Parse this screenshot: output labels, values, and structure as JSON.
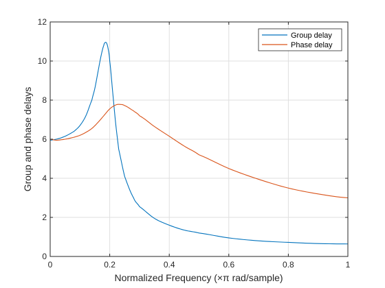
{
  "chart_data": {
    "type": "line",
    "xlabel": "Normalized  Frequency  (×π  rad/sample)",
    "ylabel": "Group and phase delays",
    "xlim": [
      0,
      1
    ],
    "ylim": [
      0,
      12
    ],
    "xticks": [
      "0",
      "0.2",
      "0.4",
      "0.6",
      "0.8",
      "1"
    ],
    "yticks": [
      "0",
      "2",
      "4",
      "6",
      "8",
      "10",
      "12"
    ],
    "grid": true,
    "legend_position": "top-right",
    "series": [
      {
        "name": "Group delay",
        "color": "#0072BD",
        "x": [
          0,
          0.02,
          0.05,
          0.08,
          0.1,
          0.12,
          0.14,
          0.15,
          0.16,
          0.17,
          0.18,
          0.185,
          0.19,
          0.195,
          0.2,
          0.21,
          0.22,
          0.23,
          0.25,
          0.28,
          0.3,
          0.35,
          0.4,
          0.45,
          0.5,
          0.6,
          0.7,
          0.8,
          0.9,
          1.0
        ],
        "y": [
          5.95,
          6.0,
          6.15,
          6.4,
          6.7,
          7.2,
          8.0,
          8.6,
          9.4,
          10.2,
          10.8,
          10.95,
          10.9,
          10.6,
          10.0,
          8.4,
          6.8,
          5.5,
          4.1,
          3.0,
          2.55,
          1.95,
          1.6,
          1.35,
          1.2,
          0.95,
          0.8,
          0.72,
          0.66,
          0.64
        ]
      },
      {
        "name": "Phase delay",
        "color": "#D95319",
        "x": [
          0,
          0.02,
          0.05,
          0.08,
          0.1,
          0.12,
          0.14,
          0.16,
          0.18,
          0.2,
          0.22,
          0.235,
          0.25,
          0.28,
          0.3,
          0.35,
          0.4,
          0.45,
          0.5,
          0.6,
          0.7,
          0.8,
          0.9,
          1.0
        ],
        "y": [
          6.0,
          5.95,
          6.0,
          6.1,
          6.2,
          6.35,
          6.55,
          6.85,
          7.2,
          7.55,
          7.75,
          7.78,
          7.72,
          7.45,
          7.2,
          6.65,
          6.15,
          5.65,
          5.2,
          4.5,
          3.95,
          3.5,
          3.2,
          3.0
        ]
      }
    ]
  }
}
